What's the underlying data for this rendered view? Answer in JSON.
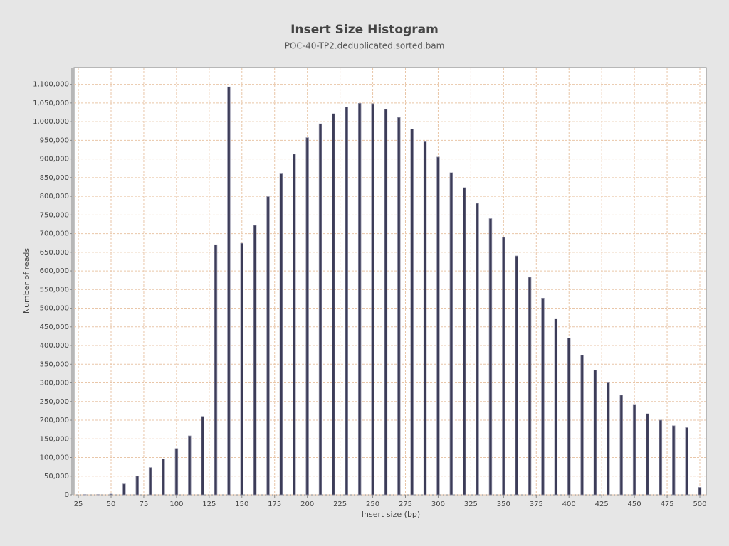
{
  "chart_data": {
    "type": "bar",
    "title": "Insert Size Histogram",
    "subtitle": "POC-40-TP2.deduplicated.sorted.bam",
    "x_label": "Insert size (bp)",
    "y_label": "Number of reads",
    "x": [
      30,
      40,
      50,
      60,
      70,
      80,
      90,
      100,
      110,
      120,
      130,
      140,
      150,
      160,
      170,
      180,
      190,
      200,
      210,
      220,
      230,
      240,
      250,
      260,
      270,
      280,
      290,
      300,
      310,
      320,
      330,
      340,
      350,
      360,
      370,
      380,
      390,
      400,
      410,
      420,
      430,
      440,
      450,
      460,
      470,
      480,
      490,
      500
    ],
    "values": [
      500,
      500,
      2000,
      29000,
      50000,
      73000,
      96000,
      124000,
      158000,
      210000,
      670000,
      1093000,
      674000,
      722000,
      799000,
      860000,
      913000,
      957000,
      994000,
      1021000,
      1039000,
      1049000,
      1048000,
      1033000,
      1011000,
      980000,
      946000,
      905000,
      863000,
      823000,
      781000,
      740000,
      690000,
      640000,
      583000,
      527000,
      472000,
      420000,
      374000,
      334000,
      300000,
      267000,
      242000,
      217000,
      200000,
      185000,
      180000,
      20000
    ],
    "color": "#3c3c58",
    "xlim": [
      21.7,
      504.9
    ],
    "xticks": [
      25,
      50,
      75,
      100,
      125,
      150,
      175,
      200,
      225,
      250,
      275,
      300,
      325,
      350,
      375,
      400,
      425,
      450,
      475,
      500
    ],
    "ylim": [
      0,
      1145000
    ],
    "yticks": [
      0,
      {
        "value": 50000,
        "label": "50,000"
      },
      {
        "value": 100000,
        "label": "100,000"
      },
      {
        "value": 150000,
        "label": "150,000"
      },
      {
        "value": 200000,
        "label": "200,000"
      },
      {
        "value": 250000,
        "label": "250,000"
      },
      {
        "value": 300000,
        "label": "300,000"
      },
      {
        "value": 350000,
        "label": "350,000"
      },
      {
        "value": 400000,
        "label": "400,000"
      },
      {
        "value": 450000,
        "label": "450,000"
      },
      {
        "value": 500000,
        "label": "500,000"
      },
      {
        "value": 550000,
        "label": "550,000"
      },
      {
        "value": 600000,
        "label": "600,000"
      },
      {
        "value": 650000,
        "label": "650,000"
      },
      {
        "value": 700000,
        "label": "700,000"
      },
      {
        "value": 750000,
        "label": "750,000"
      },
      {
        "value": 800000,
        "label": "800,000"
      },
      {
        "value": 850000,
        "label": "850,000"
      },
      {
        "value": 900000,
        "label": "900,000"
      },
      {
        "value": 950000,
        "label": "950,000"
      },
      {
        "value": 1000000,
        "label": "1,000,000"
      },
      {
        "value": 1050000,
        "label": "1,050,000"
      },
      {
        "value": 1100000,
        "label": "1,100,000"
      }
    ],
    "grid": true
  }
}
